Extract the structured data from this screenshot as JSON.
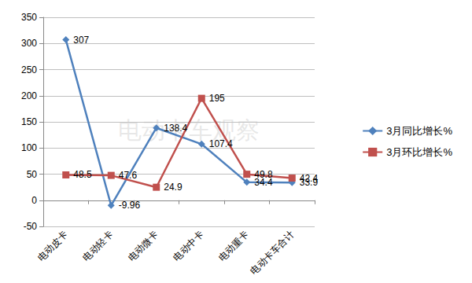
{
  "chart_data": {
    "type": "line",
    "categories": [
      "电动皮卡",
      "电动轻卡",
      "电动微卡",
      "电动中卡",
      "电动重卡",
      "电动卡车合计"
    ],
    "series": [
      {
        "name": "3月同比增长%",
        "color": "#4F81BD",
        "marker": "diamond",
        "line_style": "solid",
        "values": [
          307,
          -9.96,
          138.4,
          107.4,
          34.4,
          33.9
        ]
      },
      {
        "name": "3月环比增长%",
        "color": "#C0504D",
        "marker": "square",
        "line_style": "solid",
        "values": [
          48.5,
          47.6,
          24.9,
          195,
          49.8,
          42.4
        ]
      }
    ],
    "ylim": [
      -50,
      350
    ],
    "yticks": [
      -50,
      0,
      50,
      100,
      150,
      200,
      250,
      300,
      350
    ],
    "grid": true,
    "legend": "right",
    "data_labels": true,
    "annotations": [
      "电动卡车观察"
    ]
  }
}
